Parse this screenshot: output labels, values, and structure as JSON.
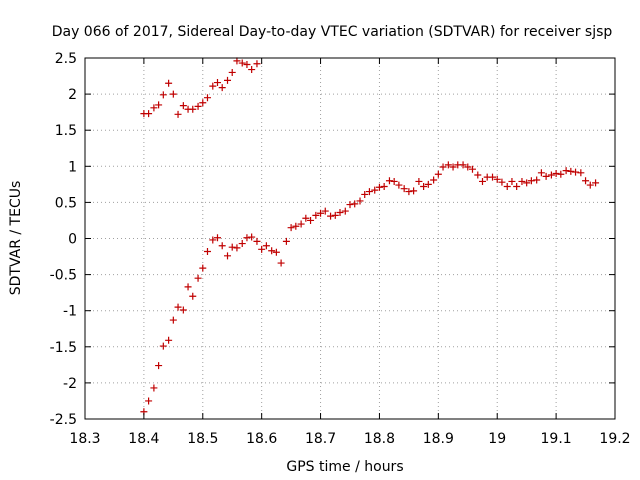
{
  "chart_data": {
    "type": "scatter",
    "title": "Day 066 of 2017, Sidereal Day-to-day VTEC variation (SDTVAR) for receiver sjsp",
    "xlabel": "GPS time / hours",
    "ylabel": "SDTVAR / TECUs",
    "xlim": [
      18.3,
      19.2
    ],
    "ylim": [
      -2.5,
      2.5
    ],
    "x_ticks": [
      18.3,
      18.4,
      18.5,
      18.6,
      18.7,
      18.8,
      18.9,
      19.0,
      19.1,
      19.2
    ],
    "x_tick_labels": [
      "18.3",
      "18.4",
      "18.5",
      "18.6",
      "18.7",
      "18.8",
      "18.9",
      "19",
      "19.1",
      "19.2"
    ],
    "y_ticks": [
      -2.5,
      -2,
      -1.5,
      -1,
      -0.5,
      0,
      0.5,
      1,
      1.5,
      2,
      2.5
    ],
    "y_tick_labels": [
      "-2.5",
      "-2",
      "-1.5",
      "-1",
      "-0.5",
      "0",
      "0.5",
      "1",
      "1.5",
      "2",
      "2.5"
    ],
    "grid": true,
    "marker": "+",
    "color": "#c00000",
    "series": [
      {
        "points": [
          [
            18.4,
            1.73
          ],
          [
            18.408,
            1.73
          ],
          [
            18.417,
            1.81
          ],
          [
            18.425,
            1.85
          ],
          [
            18.433,
            1.99
          ],
          [
            18.442,
            2.15
          ],
          [
            18.45,
            2.0
          ],
          [
            18.458,
            1.72
          ],
          [
            18.467,
            1.84
          ],
          [
            18.475,
            1.79
          ],
          [
            18.483,
            1.79
          ],
          [
            18.492,
            1.83
          ],
          [
            18.5,
            1.88
          ],
          [
            18.508,
            1.95
          ],
          [
            18.517,
            2.11
          ],
          [
            18.525,
            2.16
          ],
          [
            18.533,
            2.09
          ],
          [
            18.542,
            2.19
          ],
          [
            18.55,
            2.3
          ],
          [
            18.558,
            2.46
          ],
          [
            18.567,
            2.43
          ],
          [
            18.575,
            2.41
          ],
          [
            18.583,
            2.34
          ],
          [
            18.592,
            2.42
          ],
          [
            18.4,
            -2.4
          ],
          [
            18.408,
            -2.25
          ],
          [
            18.417,
            -2.07
          ],
          [
            18.425,
            -1.76
          ],
          [
            18.433,
            -1.49
          ],
          [
            18.442,
            -1.41
          ],
          [
            18.45,
            -1.13
          ],
          [
            18.458,
            -0.95
          ],
          [
            18.467,
            -0.99
          ],
          [
            18.475,
            -0.67
          ],
          [
            18.483,
            -0.8
          ],
          [
            18.492,
            -0.55
          ],
          [
            18.5,
            -0.41
          ],
          [
            18.508,
            -0.18
          ],
          [
            18.517,
            -0.02
          ],
          [
            18.525,
            0.01
          ],
          [
            18.533,
            -0.1
          ],
          [
            18.542,
            -0.24
          ],
          [
            18.55,
            -0.12
          ],
          [
            18.558,
            -0.13
          ],
          [
            18.567,
            -0.07
          ],
          [
            18.575,
            0.01
          ],
          [
            18.583,
            0.02
          ],
          [
            18.592,
            -0.04
          ],
          [
            18.6,
            -0.15
          ],
          [
            18.608,
            -0.1
          ],
          [
            18.617,
            -0.17
          ],
          [
            18.625,
            -0.19
          ],
          [
            18.633,
            -0.34
          ],
          [
            18.642,
            -0.04
          ],
          [
            18.65,
            0.15
          ],
          [
            18.658,
            0.17
          ],
          [
            18.667,
            0.2
          ],
          [
            18.675,
            0.28
          ],
          [
            18.683,
            0.25
          ],
          [
            18.692,
            0.32
          ],
          [
            18.7,
            0.35
          ],
          [
            18.708,
            0.38
          ],
          [
            18.717,
            0.31
          ],
          [
            18.725,
            0.32
          ],
          [
            18.733,
            0.36
          ],
          [
            18.742,
            0.38
          ],
          [
            18.75,
            0.47
          ],
          [
            18.758,
            0.48
          ],
          [
            18.767,
            0.52
          ],
          [
            18.775,
            0.61
          ],
          [
            18.783,
            0.65
          ],
          [
            18.792,
            0.67
          ],
          [
            18.8,
            0.71
          ],
          [
            18.808,
            0.72
          ],
          [
            18.817,
            0.8
          ],
          [
            18.825,
            0.79
          ],
          [
            18.833,
            0.74
          ],
          [
            18.842,
            0.69
          ],
          [
            18.85,
            0.65
          ],
          [
            18.858,
            0.66
          ],
          [
            18.867,
            0.79
          ],
          [
            18.875,
            0.72
          ],
          [
            18.883,
            0.75
          ],
          [
            18.892,
            0.81
          ],
          [
            18.9,
            0.89
          ],
          [
            18.908,
            0.99
          ],
          [
            18.917,
            1.02
          ],
          [
            18.925,
            0.99
          ],
          [
            18.933,
            1.02
          ],
          [
            18.942,
            1.02
          ],
          [
            18.95,
            0.99
          ],
          [
            18.958,
            0.96
          ],
          [
            18.967,
            0.88
          ],
          [
            18.975,
            0.79
          ],
          [
            18.983,
            0.85
          ],
          [
            18.992,
            0.85
          ],
          [
            19.0,
            0.82
          ],
          [
            19.008,
            0.78
          ],
          [
            19.017,
            0.72
          ],
          [
            19.025,
            0.79
          ],
          [
            19.033,
            0.72
          ],
          [
            19.042,
            0.79
          ],
          [
            19.05,
            0.77
          ],
          [
            19.058,
            0.8
          ],
          [
            19.067,
            0.81
          ],
          [
            19.075,
            0.91
          ],
          [
            19.083,
            0.86
          ],
          [
            19.092,
            0.88
          ],
          [
            19.1,
            0.9
          ],
          [
            19.108,
            0.89
          ],
          [
            19.117,
            0.94
          ],
          [
            19.125,
            0.93
          ],
          [
            19.133,
            0.92
          ],
          [
            19.142,
            0.91
          ],
          [
            19.15,
            0.8
          ],
          [
            19.158,
            0.74
          ],
          [
            19.167,
            0.77
          ]
        ]
      }
    ]
  }
}
